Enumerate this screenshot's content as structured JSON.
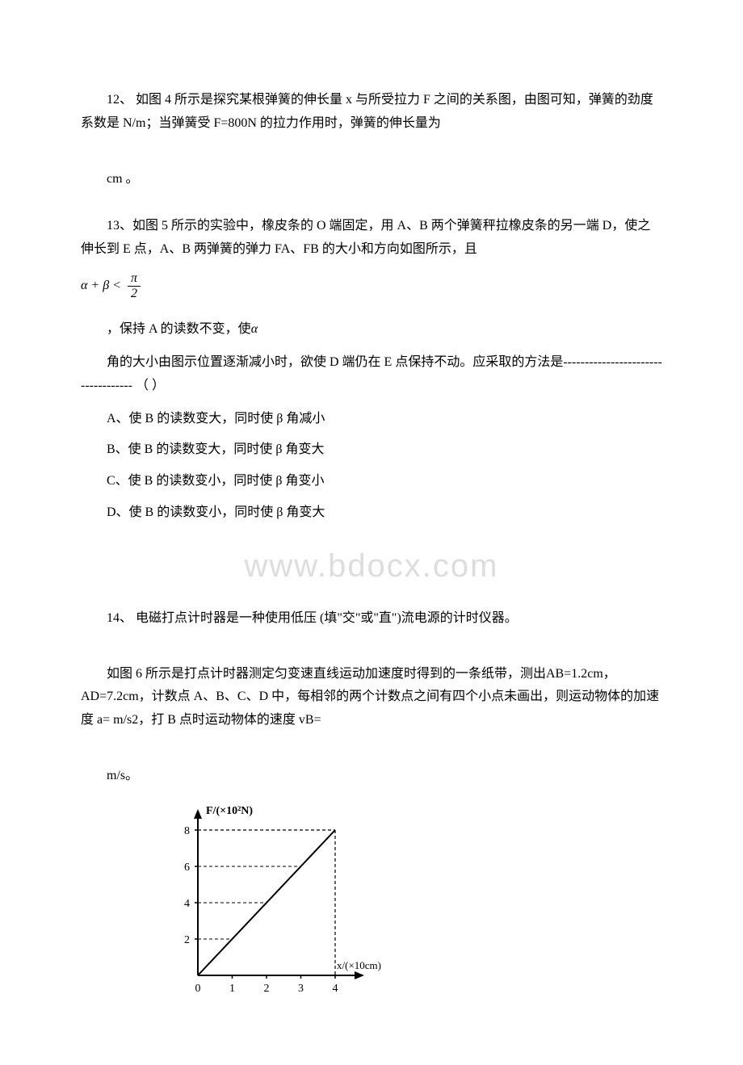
{
  "q12": {
    "line1": "12、 如图 4 所示是探究某根弹簧的伸长量 x 与所受拉力 F 之间的关系图，由图可知，弹簧的劲度系数是 N/m；当弹簧受 F=800N 的拉力作用时，弹簧的伸长量为",
    "line2": "cm 。"
  },
  "q13": {
    "line1": "13、如图 5 所示的实验中，橡皮条的 O 端固定，用 A、B 两个弹簧秤拉橡皮条的另一端 D，使之伸长到 E 点，A、B 两弹簧的弹力 FA、FB 的大小和方向如图所示，且",
    "formula_parts": {
      "lhs": "α + β <",
      "numerator": "π",
      "denominator": "2"
    },
    "line2": "，保持 A 的读数不变，使",
    "alpha": "α",
    "line3": "角的大小由图示位置逐渐减小时，欲使 D 端仍在 E 点保持不动。应采取的方法是----------------------------------- （  ）",
    "optionA": "A、使 B 的读数变大，同时使 β 角减小",
    "optionB": "B、使 B 的读数变大，同时使 β 角变大",
    "optionC": "C、使 B 的读数变小，同时使 β 角变小",
    "optionD": "D、使 B 的读数变小，同时使 β 角变大"
  },
  "watermark": "www.bdocx.com",
  "q14": {
    "line1": "14、 电磁打点计时器是一种使用低压  (填\"交\"或\"直\")流电源的计时仪器。",
    "line2": "如图 6 所示是打点计时器测定匀变速直线运动加速度时得到的一条纸带，测出AB=1.2cm，AD=7.2cm，计数点 A、B、C、D 中，每相邻的两个计数点之间有四个小点未画出，则运动物体的加速度 a= m/s2，打 B 点时运动物体的速度 vB=",
    "line3": "m/s。"
  },
  "chart": {
    "type": "line",
    "y_label": "F/(×10²N)",
    "x_label": "x/(×10cm)",
    "y_ticks": [
      2,
      4,
      6,
      8
    ],
    "x_ticks": [
      0,
      1,
      2,
      3,
      4
    ],
    "data_start": [
      0,
      0
    ],
    "data_end": [
      4,
      8
    ],
    "dash_y": 8,
    "dash_x": 4,
    "colors": {
      "axis": "#000000",
      "line": "#000000",
      "dash": "#000000",
      "background": "#ffffff"
    },
    "axis_label_fontsize": 14,
    "tick_fontsize": 14,
    "line_width": 2,
    "dash_pattern": "4,3"
  }
}
